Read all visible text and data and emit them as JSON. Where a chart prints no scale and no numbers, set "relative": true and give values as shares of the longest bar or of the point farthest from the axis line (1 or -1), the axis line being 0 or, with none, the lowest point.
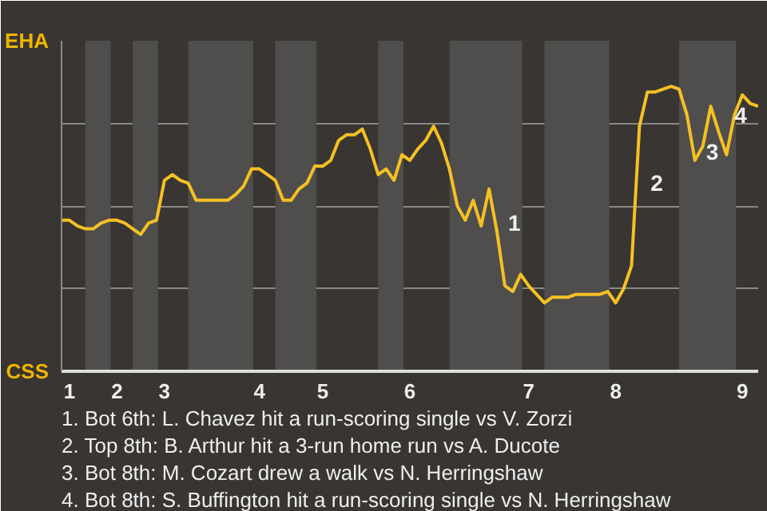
{
  "chart_data": {
    "type": "line",
    "relative": true,
    "categories": [
      null,
      "1",
      null,
      null,
      null,
      null,
      null,
      "2",
      null,
      null,
      null,
      null,
      null,
      "3",
      null,
      null,
      null,
      null,
      null,
      null,
      null,
      null,
      null,
      null,
      null,
      "4",
      null,
      null,
      null,
      null,
      null,
      null,
      null,
      "5",
      null,
      null,
      null,
      null,
      null,
      null,
      null,
      null,
      null,
      null,
      "6",
      null,
      null,
      null,
      null,
      null,
      null,
      null,
      null,
      null,
      null,
      null,
      null,
      null,
      null,
      "7",
      null,
      null,
      null,
      null,
      null,
      null,
      null,
      null,
      null,
      null,
      "8",
      null,
      null,
      null,
      null,
      null,
      null,
      null,
      null,
      null,
      null,
      null,
      null,
      null,
      null,
      null,
      "9",
      null,
      null
    ],
    "series": [
      {
        "color": "#f5c023",
        "values": [
          0.53,
          0.53,
          0.51,
          0.5,
          0.5,
          0.52,
          0.53,
          0.53,
          0.52,
          0.5,
          0.48,
          0.52,
          0.53,
          0.67,
          0.69,
          0.67,
          0.66,
          0.6,
          0.6,
          0.6,
          0.6,
          0.6,
          0.62,
          0.65,
          0.71,
          0.71,
          0.69,
          0.67,
          0.6,
          0.6,
          0.64,
          0.66,
          0.72,
          0.72,
          0.74,
          0.81,
          0.83,
          0.83,
          0.85,
          0.78,
          0.69,
          0.71,
          0.67,
          0.76,
          0.74,
          0.78,
          0.81,
          0.86,
          0.8,
          0.71,
          0.58,
          0.53,
          0.6,
          0.51,
          0.64,
          0.49,
          0.3,
          0.28,
          0.34,
          0.3,
          0.27,
          0.24,
          0.26,
          0.26,
          0.26,
          0.27,
          0.27,
          0.27,
          0.27,
          0.28,
          0.24,
          0.29,
          0.37,
          0.86,
          0.98,
          0.98,
          0.99,
          1.0,
          0.99,
          0.9,
          0.74,
          0.79,
          0.93,
          0.84,
          0.76,
          0.9,
          0.97,
          0.94,
          0.93
        ]
      }
    ],
    "grid": "y",
    "line_style": "solid",
    "annotations": [
      "EHA",
      "CSS",
      "1",
      "2",
      "3",
      "4",
      "1. Bot 6th: L. Chavez hit a run-scoring single vs V. Zorzi",
      "2. Top 8th: B. Arthur hit a 3-run home run vs A. Ducote",
      "3. Bot 8th: M. Cozart drew a walk vs N. Herringshaw",
      "4. Bot 8th: S. Buffington hit a run-scoring single vs N. Herringshaw"
    ]
  }
}
